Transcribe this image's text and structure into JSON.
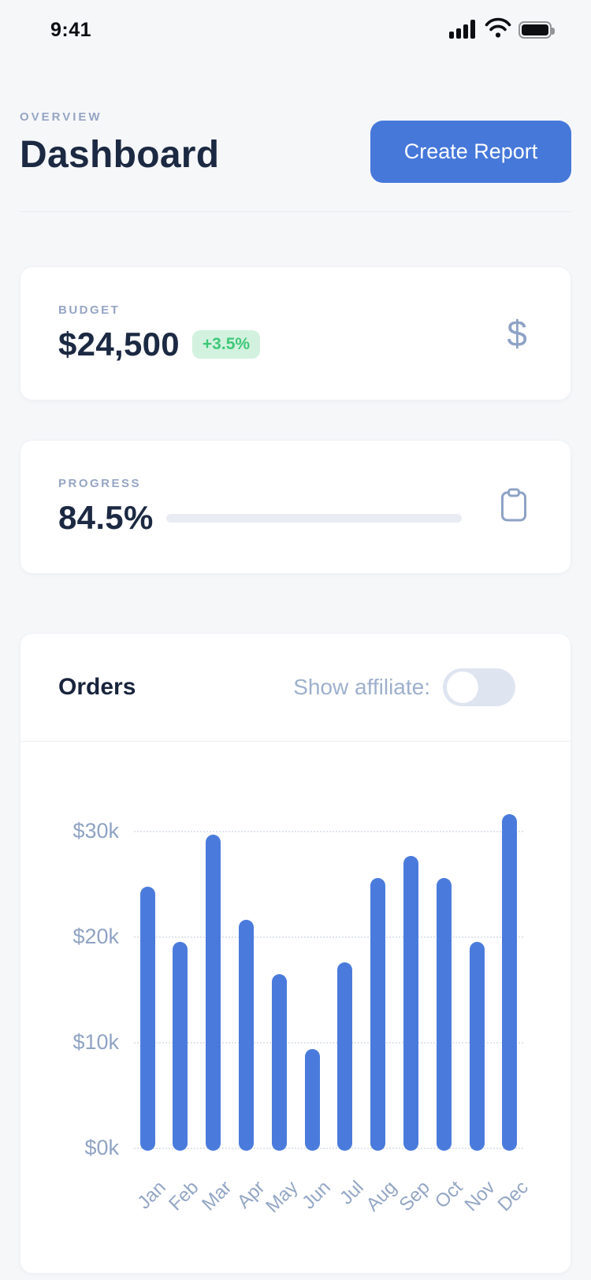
{
  "status_bar": {
    "time": "9:41",
    "icons": [
      "signal-icon",
      "wifi-icon",
      "battery-icon"
    ]
  },
  "header": {
    "eyebrow": "OVERVIEW",
    "title": "Dashboard",
    "create_report_label": "Create Report"
  },
  "budget_card": {
    "label": "BUDGET",
    "value": "$24,500",
    "delta": "+3.5%",
    "icon": "dollar-icon",
    "icon_glyph": "$"
  },
  "progress_card": {
    "label": "PROGRESS",
    "value": "84.5%",
    "percent": 84.5,
    "icon": "clipboard-icon"
  },
  "orders_card": {
    "title": "Orders",
    "toggle_label": "Show affiliate:",
    "toggle_state": "off"
  },
  "chart_data": {
    "type": "bar",
    "title": "Orders",
    "categories": [
      "Jan",
      "Feb",
      "Mar",
      "Apr",
      "May",
      "Jun",
      "Jul",
      "Aug",
      "Sep",
      "Oct",
      "Nov",
      "Dec"
    ],
    "values": [
      25.0,
      19.8,
      29.9,
      21.9,
      16.7,
      9.6,
      17.8,
      25.8,
      27.9,
      25.8,
      19.8,
      31.9
    ],
    "unit": "thousand USD",
    "xlabel": "",
    "ylabel": "",
    "ytick_labels": [
      "$0k",
      "$10k",
      "$20k",
      "$30k"
    ],
    "ytick_values": [
      0,
      10,
      20,
      30
    ],
    "ylim": [
      0,
      35
    ],
    "grid": "horizontal-dotted",
    "legend": "none",
    "bar_color": "#4a7bdc"
  },
  "colors": {
    "page_bg": "#f6f7f9",
    "card_bg": "#ffffff",
    "accent_blue": "#4678da",
    "bar_blue": "#4a7bdc",
    "navy_text": "#1c2942",
    "muted_label": "#96a5c4",
    "axis_label": "#93a6c5",
    "badge_green_bg": "#d2f2df",
    "badge_green_text": "#3fc878",
    "icon_slate": "#8ea2c6",
    "progress_fill": "#3e72d8",
    "progress_track": "#e9edf3",
    "toggle_track": "#dee4f0"
  }
}
